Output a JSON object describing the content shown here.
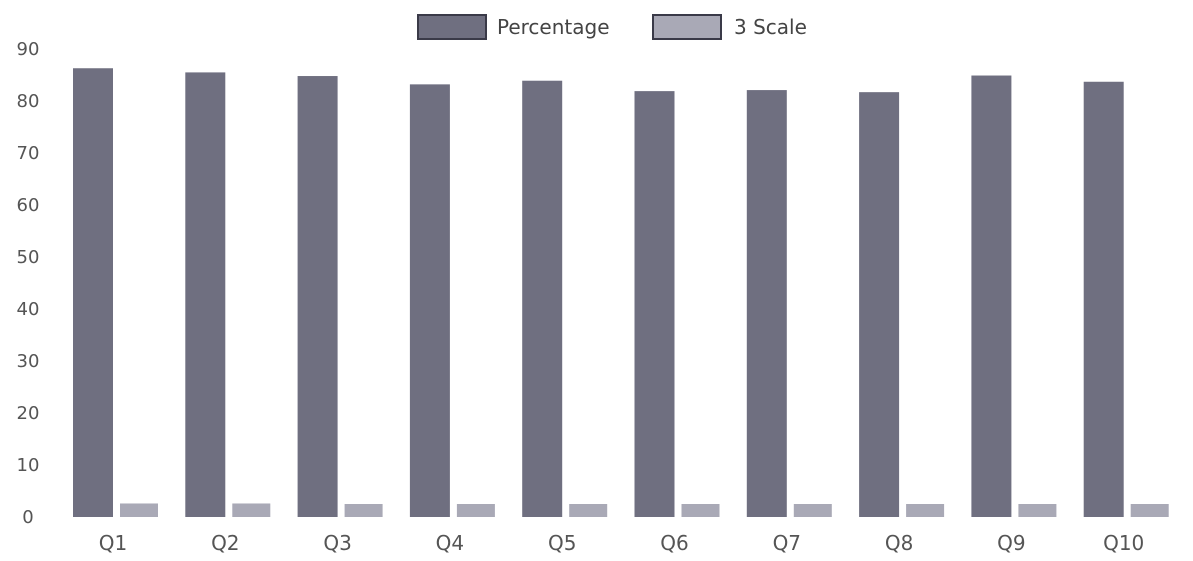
{
  "chart_data": {
    "type": "bar",
    "title": "",
    "xlabel": "",
    "ylabel": "",
    "ylim": [
      0,
      90
    ],
    "yticks": [
      "0",
      "10",
      "20",
      "30",
      "40",
      "50",
      "60",
      "70",
      "80",
      "90"
    ],
    "categories": [
      "Q1",
      "Q2",
      "Q3",
      "Q4",
      "Q5",
      "Q6",
      "Q7",
      "Q8",
      "Q9",
      "Q10"
    ],
    "series": [
      {
        "name": "Percentage",
        "color": "#6f6f80",
        "values": [
          86.3,
          85.5,
          84.8,
          83.2,
          83.9,
          81.9,
          82.1,
          81.7,
          84.9,
          83.7
        ]
      },
      {
        "name": "3 Scale",
        "color": "#a9a9b6",
        "values": [
          2.6,
          2.6,
          2.5,
          2.5,
          2.5,
          2.5,
          2.5,
          2.5,
          2.5,
          2.5
        ]
      }
    ],
    "grid": false,
    "legend_position": "top-center"
  }
}
